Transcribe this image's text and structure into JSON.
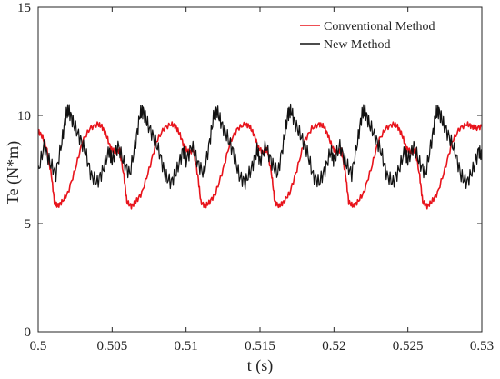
{
  "chart_data": {
    "type": "line",
    "xlabel": "t (s)",
    "ylabel": "Te (N*m)",
    "xlim": [
      0.5,
      0.53
    ],
    "ylim": [
      0,
      15
    ],
    "x_ticks": [
      "0.5",
      "0.505",
      "0.51",
      "0.515",
      "0.52",
      "0.525",
      "0.53"
    ],
    "x_tick_values": [
      0.5,
      0.505,
      0.51,
      0.515,
      0.52,
      0.525,
      0.53
    ],
    "y_ticks": [
      "0",
      "5",
      "10",
      "15"
    ],
    "y_tick_values": [
      0,
      5,
      10,
      15
    ],
    "grid": false,
    "legend_position": "top-right",
    "series": [
      {
        "name": "Conventional Method",
        "color": "#e8141c",
        "period": 0.005,
        "x": [
          0.5,
          0.5003,
          0.5006,
          0.5009,
          0.5011,
          0.5013,
          0.5016,
          0.502,
          0.5025,
          0.503,
          0.5035,
          0.504,
          0.5043,
          0.5046,
          0.5049,
          0.5052,
          0.5055,
          0.5058,
          0.506,
          0.5063,
          0.5066,
          0.507,
          0.5075,
          0.508,
          0.5085,
          0.509,
          0.5093,
          0.5096,
          0.5099,
          0.5102,
          0.5105,
          0.5108,
          0.511,
          0.5113,
          0.5116,
          0.512,
          0.5125,
          0.513,
          0.5135,
          0.514,
          0.5143,
          0.5146,
          0.5149,
          0.5152,
          0.5155,
          0.5158,
          0.516,
          0.5163,
          0.5166,
          0.517,
          0.5175,
          0.518,
          0.5185,
          0.519,
          0.5193,
          0.5196,
          0.5199,
          0.5202,
          0.5205,
          0.5208,
          0.521,
          0.5213,
          0.5216,
          0.522,
          0.5225,
          0.523,
          0.5235,
          0.524,
          0.5243,
          0.5246,
          0.5249,
          0.5252,
          0.5255,
          0.5258,
          0.526,
          0.5263,
          0.5266,
          0.527,
          0.5275,
          0.528,
          0.5285,
          0.529,
          0.5293,
          0.5296,
          0.53
        ],
        "y": [
          9.3,
          9.0,
          8.4,
          7.2,
          6.0,
          5.8,
          6.0,
          6.4,
          7.5,
          8.8,
          9.4,
          9.6,
          9.5,
          9.1,
          8.5,
          8.3,
          8.4,
          7.2,
          6.0,
          5.8,
          6.0,
          6.4,
          7.5,
          8.8,
          9.4,
          9.6,
          9.5,
          9.1,
          8.5,
          8.3,
          8.4,
          7.2,
          6.0,
          5.8,
          6.0,
          6.4,
          7.5,
          8.8,
          9.4,
          9.6,
          9.5,
          9.1,
          8.5,
          8.3,
          8.4,
          7.2,
          6.0,
          5.8,
          6.0,
          6.4,
          7.5,
          8.8,
          9.4,
          9.6,
          9.5,
          9.1,
          8.5,
          8.3,
          8.4,
          7.2,
          6.0,
          5.8,
          6.0,
          6.4,
          7.5,
          8.8,
          9.4,
          9.6,
          9.5,
          9.1,
          8.5,
          8.3,
          8.4,
          7.2,
          6.0,
          5.8,
          6.0,
          6.4,
          7.5,
          8.8,
          9.4,
          9.6,
          9.5,
          9.4,
          9.5
        ]
      },
      {
        "name": "New Method",
        "color": "#111111",
        "period": 0.005,
        "x": [
          0.5,
          0.5004,
          0.5008,
          0.5012,
          0.5016,
          0.5019,
          0.5021,
          0.5024,
          0.5028,
          0.5032,
          0.5036,
          0.504,
          0.5044,
          0.5048,
          0.505,
          0.5054,
          0.5058,
          0.5062,
          0.5066,
          0.5069,
          0.5071,
          0.5074,
          0.5078,
          0.5082,
          0.5086,
          0.509,
          0.5094,
          0.5098,
          0.51,
          0.5104,
          0.5108,
          0.5112,
          0.5116,
          0.5119,
          0.5121,
          0.5124,
          0.5128,
          0.5132,
          0.5136,
          0.514,
          0.5144,
          0.5148,
          0.515,
          0.5154,
          0.5158,
          0.5162,
          0.5166,
          0.5169,
          0.5171,
          0.5174,
          0.5178,
          0.5182,
          0.5186,
          0.519,
          0.5194,
          0.5198,
          0.52,
          0.5204,
          0.5208,
          0.5212,
          0.5216,
          0.5219,
          0.5221,
          0.5224,
          0.5228,
          0.5232,
          0.5236,
          0.524,
          0.5244,
          0.5248,
          0.525,
          0.5254,
          0.5258,
          0.5262,
          0.5266,
          0.5269,
          0.5271,
          0.5274,
          0.5278,
          0.5282,
          0.5286,
          0.529,
          0.5294,
          0.5298,
          0.53
        ],
        "y": [
          7.4,
          8.6,
          7.8,
          7.3,
          8.8,
          10.1,
          10.2,
          9.6,
          9.0,
          8.3,
          7.2,
          6.9,
          7.5,
          8.4,
          7.9,
          8.6,
          7.8,
          7.3,
          8.8,
          10.1,
          10.2,
          9.6,
          9.0,
          8.3,
          7.2,
          6.9,
          7.5,
          8.4,
          7.9,
          8.6,
          7.8,
          7.3,
          8.8,
          10.1,
          10.2,
          9.6,
          9.0,
          8.3,
          7.2,
          6.9,
          7.5,
          8.4,
          7.9,
          8.6,
          7.8,
          7.3,
          8.8,
          10.1,
          10.2,
          9.6,
          9.0,
          8.3,
          7.2,
          6.9,
          7.5,
          8.4,
          7.9,
          8.6,
          7.8,
          7.3,
          8.8,
          10.1,
          10.2,
          9.6,
          9.0,
          8.3,
          7.2,
          6.9,
          7.5,
          8.4,
          7.9,
          8.6,
          7.8,
          7.3,
          8.8,
          10.1,
          10.2,
          9.6,
          9.0,
          8.3,
          7.2,
          6.9,
          7.5,
          8.4,
          8.0
        ]
      }
    ]
  }
}
